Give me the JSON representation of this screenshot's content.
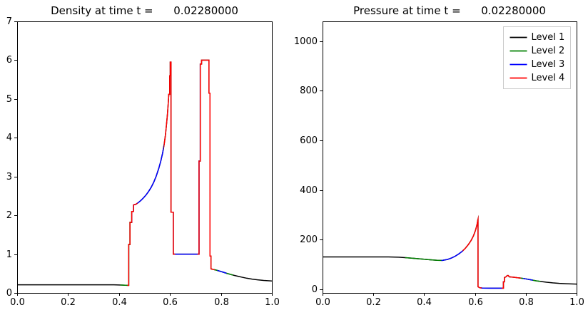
{
  "figure": {
    "background": "#ffffff",
    "text_color": "#000000"
  },
  "chart_data": [
    {
      "id": "density",
      "type": "line",
      "title": "Density at time t =      0.02280000",
      "xlabel": "",
      "ylabel": "",
      "xlim": [
        0.0,
        1.0
      ],
      "ylim": [
        0,
        7
      ],
      "xticks": [
        "0.0",
        "0.2",
        "0.4",
        "0.6",
        "0.8",
        "1.0"
      ],
      "xtick_values": [
        0.0,
        0.2,
        0.4,
        0.6,
        0.8,
        1.0
      ],
      "yticks": [
        "0",
        "1",
        "2",
        "3",
        "4",
        "5",
        "6",
        "7"
      ],
      "ytick_values": [
        0,
        1,
        2,
        3,
        4,
        5,
        6,
        7
      ],
      "grid": false,
      "legend": {
        "show": false,
        "entries": []
      },
      "base_series": {
        "name": "Level 1",
        "color": "#000000",
        "points": [
          [
            0.0,
            0.21
          ],
          [
            0.15,
            0.21
          ],
          [
            0.3,
            0.21
          ],
          [
            0.38,
            0.208
          ],
          [
            0.412,
            0.203
          ],
          [
            0.425,
            0.198
          ],
          [
            0.436,
            0.195
          ],
          [
            0.438,
            0.195
          ],
          [
            0.438,
            1.25
          ],
          [
            0.443,
            1.25
          ],
          [
            0.443,
            1.82
          ],
          [
            0.45,
            1.82
          ],
          [
            0.45,
            2.1
          ],
          [
            0.457,
            2.1
          ],
          [
            0.457,
            2.27
          ],
          [
            0.466,
            2.285
          ],
          [
            0.476,
            2.33
          ],
          [
            0.486,
            2.385
          ],
          [
            0.496,
            2.45
          ],
          [
            0.506,
            2.525
          ],
          [
            0.516,
            2.615
          ],
          [
            0.526,
            2.72
          ],
          [
            0.536,
            2.85
          ],
          [
            0.546,
            3.01
          ],
          [
            0.556,
            3.21
          ],
          [
            0.564,
            3.4
          ],
          [
            0.571,
            3.6
          ],
          [
            0.577,
            3.82
          ],
          [
            0.582,
            4.06
          ],
          [
            0.586,
            4.32
          ],
          [
            0.59,
            4.6
          ],
          [
            0.593,
            4.87
          ],
          [
            0.595,
            5.08
          ],
          [
            0.595,
            5.12
          ],
          [
            0.599,
            5.12
          ],
          [
            0.599,
            5.6
          ],
          [
            0.601,
            5.6
          ],
          [
            0.601,
            5.95
          ],
          [
            0.604,
            5.95
          ],
          [
            0.604,
            2.08
          ],
          [
            0.613,
            2.08
          ],
          [
            0.613,
            1.0
          ],
          [
            0.65,
            1.0
          ],
          [
            0.7,
            1.0
          ],
          [
            0.714,
            1.0
          ],
          [
            0.714,
            3.4
          ],
          [
            0.719,
            3.4
          ],
          [
            0.719,
            5.9
          ],
          [
            0.724,
            5.9
          ],
          [
            0.724,
            6.0
          ],
          [
            0.75,
            6.0
          ],
          [
            0.753,
            6.0
          ],
          [
            0.753,
            5.15
          ],
          [
            0.757,
            5.15
          ],
          [
            0.757,
            0.95
          ],
          [
            0.761,
            0.95
          ],
          [
            0.761,
            0.62
          ],
          [
            0.77,
            0.605
          ],
          [
            0.78,
            0.59
          ],
          [
            0.79,
            0.572
          ],
          [
            0.8,
            0.552
          ],
          [
            0.812,
            0.528
          ],
          [
            0.824,
            0.503
          ],
          [
            0.838,
            0.477
          ],
          [
            0.852,
            0.452
          ],
          [
            0.868,
            0.427
          ],
          [
            0.884,
            0.403
          ],
          [
            0.902,
            0.378
          ],
          [
            0.922,
            0.356
          ],
          [
            0.944,
            0.337
          ],
          [
            0.968,
            0.322
          ],
          [
            1.0,
            0.308
          ]
        ]
      },
      "overlay_series": [
        {
          "name": "Level 2",
          "color": "#008000",
          "x_segments": [
            [
              0.405,
              0.452
            ],
            [
              0.76,
              0.848
            ]
          ]
        },
        {
          "name": "Level 3",
          "color": "#0000ff",
          "x_segments": [
            [
              0.45,
              0.575
            ],
            [
              0.615,
              0.718
            ],
            [
              0.786,
              0.822
            ]
          ]
        },
        {
          "name": "Level 4",
          "color": "#ff0000",
          "x_segments": [
            [
              0.433,
              0.472
            ],
            [
              0.576,
              0.62
            ],
            [
              0.708,
              0.775
            ]
          ]
        }
      ]
    },
    {
      "id": "pressure",
      "type": "line",
      "title": "Pressure at time t =      0.02280000",
      "xlabel": "",
      "ylabel": "",
      "xlim": [
        0.0,
        1.0
      ],
      "ylim": [
        -15,
        1080
      ],
      "xticks": [
        "0.0",
        "0.2",
        "0.4",
        "0.6",
        "0.8",
        "1.0"
      ],
      "xtick_values": [
        0.0,
        0.2,
        0.4,
        0.6,
        0.8,
        1.0
      ],
      "yticks": [
        "0",
        "200",
        "400",
        "600",
        "800",
        "1000"
      ],
      "ytick_values": [
        0,
        200,
        400,
        600,
        800,
        1000
      ],
      "grid": false,
      "legend": {
        "show": true,
        "position": "upper right",
        "entries": [
          {
            "label": "Level 1",
            "color": "#000000"
          },
          {
            "label": "Level 2",
            "color": "#008000"
          },
          {
            "label": "Level 3",
            "color": "#0000ff"
          },
          {
            "label": "Level 4",
            "color": "#ff0000"
          }
        ]
      },
      "base_series": {
        "name": "Level 1",
        "color": "#000000",
        "points": [
          [
            0.0,
            130
          ],
          [
            0.15,
            130
          ],
          [
            0.26,
            130
          ],
          [
            0.3,
            129
          ],
          [
            0.33,
            127
          ],
          [
            0.36,
            124.5
          ],
          [
            0.392,
            121.5
          ],
          [
            0.424,
            118.5
          ],
          [
            0.452,
            116.5
          ],
          [
            0.472,
            116
          ],
          [
            0.492,
            120
          ],
          [
            0.508,
            126
          ],
          [
            0.522,
            133
          ],
          [
            0.536,
            142
          ],
          [
            0.55,
            153
          ],
          [
            0.562,
            165
          ],
          [
            0.574,
            180
          ],
          [
            0.585,
            197
          ],
          [
            0.594,
            215
          ],
          [
            0.602,
            237
          ],
          [
            0.608,
            260
          ],
          [
            0.611,
            278
          ],
          [
            0.612,
            282
          ],
          [
            0.612,
            10
          ],
          [
            0.618,
            6
          ],
          [
            0.63,
            4.5
          ],
          [
            0.66,
            4
          ],
          [
            0.69,
            4
          ],
          [
            0.712,
            4
          ],
          [
            0.712,
            30
          ],
          [
            0.716,
            30
          ],
          [
            0.716,
            47
          ],
          [
            0.722,
            50
          ],
          [
            0.727,
            55
          ],
          [
            0.731,
            55
          ],
          [
            0.735,
            50
          ],
          [
            0.745,
            49
          ],
          [
            0.756,
            48
          ],
          [
            0.766,
            46.5
          ],
          [
            0.778,
            45
          ],
          [
            0.792,
            43
          ],
          [
            0.806,
            40.5
          ],
          [
            0.822,
            37.5
          ],
          [
            0.84,
            34
          ],
          [
            0.86,
            31
          ],
          [
            0.882,
            28
          ],
          [
            0.906,
            25.5
          ],
          [
            0.932,
            23.5
          ],
          [
            0.96,
            22
          ],
          [
            1.0,
            20.5
          ]
        ]
      },
      "overlay_series": [
        {
          "name": "Level 2",
          "color": "#008000",
          "x_segments": [
            [
              0.325,
              0.478
            ],
            [
              0.772,
              0.858
            ]
          ]
        },
        {
          "name": "Level 3",
          "color": "#0000ff",
          "x_segments": [
            [
              0.468,
              0.556
            ],
            [
              0.62,
              0.71
            ],
            [
              0.79,
              0.828
            ]
          ]
        },
        {
          "name": "Level 4",
          "color": "#ff0000",
          "x_segments": [
            [
              0.552,
              0.626
            ],
            [
              0.705,
              0.78
            ]
          ]
        }
      ]
    }
  ]
}
